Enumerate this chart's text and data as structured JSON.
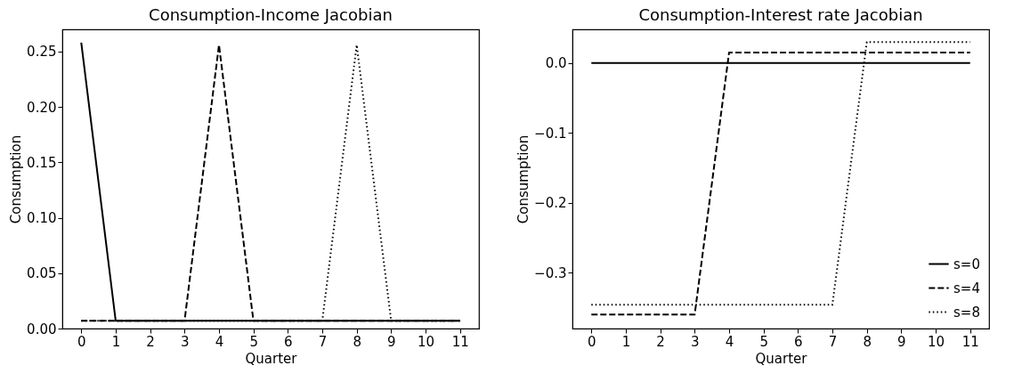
{
  "chart_data": [
    {
      "type": "line",
      "title": "Consumption-Income Jacobian",
      "xlabel": "Quarter",
      "ylabel": "Consumption",
      "x": [
        0,
        1,
        2,
        3,
        4,
        5,
        6,
        7,
        8,
        9,
        10,
        11
      ],
      "xlim": [
        -0.55,
        11.55
      ],
      "xticks": [
        0,
        1,
        2,
        3,
        4,
        5,
        6,
        7,
        8,
        9,
        10,
        11
      ],
      "ylim": [
        0,
        0.27
      ],
      "yticks": [
        {
          "value": 0,
          "label": "0.00"
        },
        {
          "value": 0.05,
          "label": "0.05"
        },
        {
          "value": 0.1,
          "label": "0.10"
        },
        {
          "value": 0.15,
          "label": "0.15"
        },
        {
          "value": 0.2,
          "label": "0.20"
        },
        {
          "value": 0.25,
          "label": "0.25"
        }
      ],
      "grid": false,
      "legend": false,
      "series": [
        {
          "color": "#000000",
          "line_style": "solid",
          "values": [
            0.258,
            0.007,
            0.007,
            0.007,
            0.007,
            0.007,
            0.007,
            0.007,
            0.007,
            0.007,
            0.007,
            0.007
          ]
        },
        {
          "color": "#000000",
          "line_style": "dashed",
          "values": [
            0.007,
            0.007,
            0.007,
            0.007,
            0.256,
            0.007,
            0.007,
            0.007,
            0.007,
            0.007,
            0.007,
            0.007
          ]
        },
        {
          "color": "#000000",
          "line_style": "dotted",
          "values": [
            0.007,
            0.007,
            0.007,
            0.007,
            0.007,
            0.007,
            0.007,
            0.007,
            0.256,
            0.007,
            0.007,
            0.007
          ]
        }
      ]
    },
    {
      "type": "line",
      "title": "Consumption-Interest rate Jacobian",
      "xlabel": "Quarter",
      "ylabel": "Consumption",
      "x": [
        0,
        1,
        2,
        3,
        4,
        5,
        6,
        7,
        8,
        9,
        10,
        11
      ],
      "xlim": [
        -0.55,
        11.55
      ],
      "xticks": [
        0,
        1,
        2,
        3,
        4,
        5,
        6,
        7,
        8,
        9,
        10,
        11
      ],
      "ylim": [
        -0.38,
        0.048
      ],
      "yticks": [
        {
          "value": -0.3,
          "label": "−0.3"
        },
        {
          "value": -0.2,
          "label": "−0.2"
        },
        {
          "value": -0.1,
          "label": "−0.1"
        },
        {
          "value": 0,
          "label": "0.0"
        }
      ],
      "grid": false,
      "legend": "bottom right",
      "series": [
        {
          "name": "s=0",
          "color": "#000000",
          "line_style": "solid",
          "values": [
            0,
            0,
            0,
            0,
            0,
            0,
            0,
            0,
            0,
            0,
            0,
            0
          ]
        },
        {
          "name": "s=4",
          "color": "#000000",
          "line_style": "dashed",
          "values": [
            -0.36,
            -0.36,
            -0.36,
            -0.36,
            0.015,
            0.015,
            0.015,
            0.015,
            0.015,
            0.015,
            0.015,
            0.015
          ]
        },
        {
          "name": "s=8",
          "color": "#000000",
          "line_style": "dotted",
          "values": [
            -0.346,
            -0.346,
            -0.346,
            -0.346,
            -0.346,
            -0.346,
            -0.346,
            -0.346,
            0.03,
            0.03,
            0.03,
            0.03
          ]
        }
      ]
    }
  ]
}
